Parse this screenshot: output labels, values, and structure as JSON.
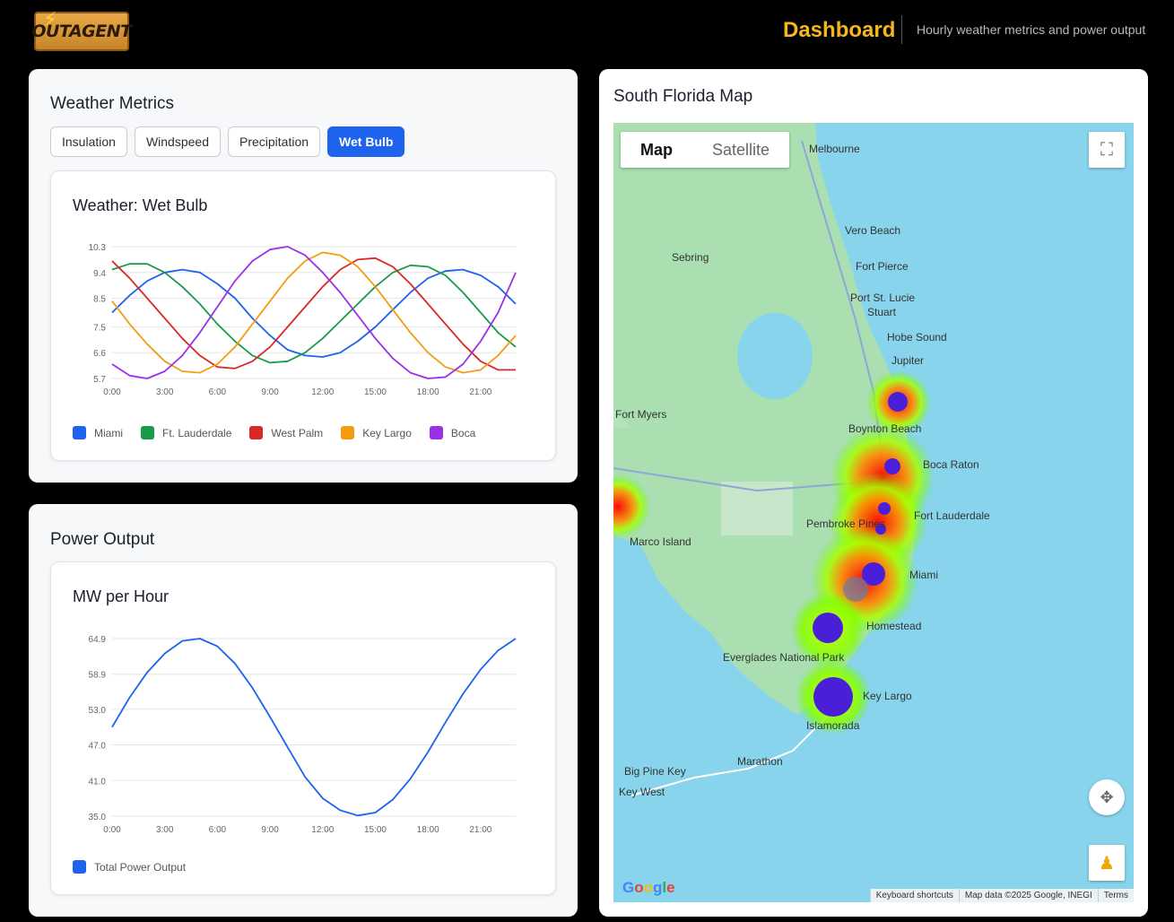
{
  "header": {
    "logo_text": "OUTAGENT",
    "title": "Dashboard",
    "subtitle": "Hourly weather metrics and power output"
  },
  "weather": {
    "title": "Weather Metrics",
    "tabs": [
      "Insulation",
      "Windspeed",
      "Precipitation",
      "Wet Bulb"
    ],
    "active_tab": "Wet Bulb",
    "chart_title": "Weather: Wet Bulb"
  },
  "power": {
    "title": "Power Output",
    "chart_title": "MW per Hour"
  },
  "map": {
    "title": "South Florida Map",
    "toggle_map": "Map",
    "toggle_satellite": "Satellite",
    "footer_shortcuts": "Keyboard shortcuts",
    "footer_data": "Map data ©2025 Google, INEGI",
    "footer_terms": "Terms",
    "google": "Google",
    "places": [
      {
        "name": "Melbourne"
      },
      {
        "name": "Vero Beach"
      },
      {
        "name": "Sebring"
      },
      {
        "name": "Fort Pierce"
      },
      {
        "name": "Port St. Lucie"
      },
      {
        "name": "Stuart"
      },
      {
        "name": "Hobe Sound"
      },
      {
        "name": "Jupiter"
      },
      {
        "name": "Fort Myers"
      },
      {
        "name": "Boynton Beach"
      },
      {
        "name": "Boca Raton"
      },
      {
        "name": "Fort Lauderdale"
      },
      {
        "name": "Pembroke Pines"
      },
      {
        "name": "Marco Island"
      },
      {
        "name": "Miami"
      },
      {
        "name": "Homestead"
      },
      {
        "name": "Everglades National Park"
      },
      {
        "name": "Key Largo"
      },
      {
        "name": "Islamorada"
      },
      {
        "name": "Marathon"
      },
      {
        "name": "Big Pine Key"
      },
      {
        "name": "Key West"
      }
    ]
  },
  "colors": {
    "accent": "#1d63ed",
    "title": "#f6b817",
    "miami": "#1d63ed",
    "lauderdale": "#1a9b4a",
    "westpalm": "#d92828",
    "keylargo": "#f39c12",
    "boca": "#9b30e8"
  },
  "chart_data": [
    {
      "type": "line",
      "title": "Weather: Wet Bulb",
      "x": [
        "0:00",
        "1:00",
        "2:00",
        "3:00",
        "4:00",
        "5:00",
        "6:00",
        "7:00",
        "8:00",
        "9:00",
        "10:00",
        "11:00",
        "12:00",
        "13:00",
        "14:00",
        "15:00",
        "16:00",
        "17:00",
        "18:00",
        "19:00",
        "20:00",
        "21:00",
        "22:00",
        "23:00"
      ],
      "x_ticks": [
        "0:00",
        "3:00",
        "6:00",
        "9:00",
        "12:00",
        "15:00",
        "18:00",
        "21:00"
      ],
      "y_ticks": [
        5.7,
        6.6,
        7.5,
        8.5,
        9.4,
        10.3
      ],
      "ylim": [
        5.7,
        10.3
      ],
      "grid": true,
      "legend": "bottom",
      "series": [
        {
          "name": "Miami",
          "color": "#1d63ed",
          "values": [
            8.0,
            8.6,
            9.1,
            9.4,
            9.5,
            9.4,
            9.0,
            8.5,
            7.8,
            7.2,
            6.7,
            6.5,
            6.45,
            6.6,
            7.0,
            7.5,
            8.1,
            8.7,
            9.2,
            9.45,
            9.5,
            9.3,
            8.9,
            8.3
          ]
        },
        {
          "name": "Ft. Lauderdale",
          "color": "#1a9b4a",
          "values": [
            9.5,
            9.7,
            9.7,
            9.4,
            8.9,
            8.3,
            7.6,
            7.0,
            6.5,
            6.25,
            6.3,
            6.6,
            7.1,
            7.7,
            8.3,
            8.9,
            9.4,
            9.65,
            9.6,
            9.3,
            8.7,
            8.0,
            7.3,
            6.8
          ]
        },
        {
          "name": "West Palm",
          "color": "#d92828",
          "values": [
            9.8,
            9.2,
            8.5,
            7.8,
            7.1,
            6.5,
            6.1,
            6.05,
            6.3,
            6.8,
            7.5,
            8.2,
            8.9,
            9.5,
            9.85,
            9.9,
            9.6,
            9.0,
            8.3,
            7.6,
            6.9,
            6.3,
            6.0,
            6.0
          ]
        },
        {
          "name": "Key Largo",
          "color": "#f39c12",
          "values": [
            8.4,
            7.6,
            6.9,
            6.3,
            5.95,
            5.9,
            6.2,
            6.8,
            7.6,
            8.4,
            9.2,
            9.8,
            10.1,
            10.0,
            9.6,
            8.9,
            8.1,
            7.3,
            6.6,
            6.1,
            5.9,
            6.0,
            6.5,
            7.2
          ]
        },
        {
          "name": "Boca",
          "color": "#9b30e8",
          "values": [
            6.2,
            5.8,
            5.7,
            5.95,
            6.5,
            7.3,
            8.2,
            9.1,
            9.8,
            10.2,
            10.3,
            10.0,
            9.4,
            8.7,
            7.9,
            7.1,
            6.4,
            5.9,
            5.7,
            5.75,
            6.2,
            7.0,
            8.0,
            9.4
          ]
        }
      ]
    },
    {
      "type": "line",
      "title": "MW per Hour",
      "x": [
        "0:00",
        "1:00",
        "2:00",
        "3:00",
        "4:00",
        "5:00",
        "6:00",
        "7:00",
        "8:00",
        "9:00",
        "10:00",
        "11:00",
        "12:00",
        "13:00",
        "14:00",
        "15:00",
        "16:00",
        "17:00",
        "18:00",
        "19:00",
        "20:00",
        "21:00",
        "22:00",
        "23:00"
      ],
      "x_ticks": [
        "0:00",
        "3:00",
        "6:00",
        "9:00",
        "12:00",
        "15:00",
        "18:00",
        "21:00"
      ],
      "y_ticks": [
        35.0,
        41.0,
        47.0,
        53.0,
        58.9,
        64.9
      ],
      "ylim": [
        35.0,
        64.9
      ],
      "grid": true,
      "legend": "bottom",
      "series": [
        {
          "name": "Total Power Output",
          "color": "#1d63ed",
          "values": [
            50.0,
            55.0,
            59.2,
            62.4,
            64.5,
            64.9,
            63.6,
            60.7,
            56.6,
            51.7,
            46.6,
            41.6,
            38.0,
            36.0,
            35.1,
            35.6,
            37.8,
            41.3,
            45.8,
            50.8,
            55.6,
            59.7,
            62.9,
            64.9
          ]
        }
      ]
    }
  ]
}
